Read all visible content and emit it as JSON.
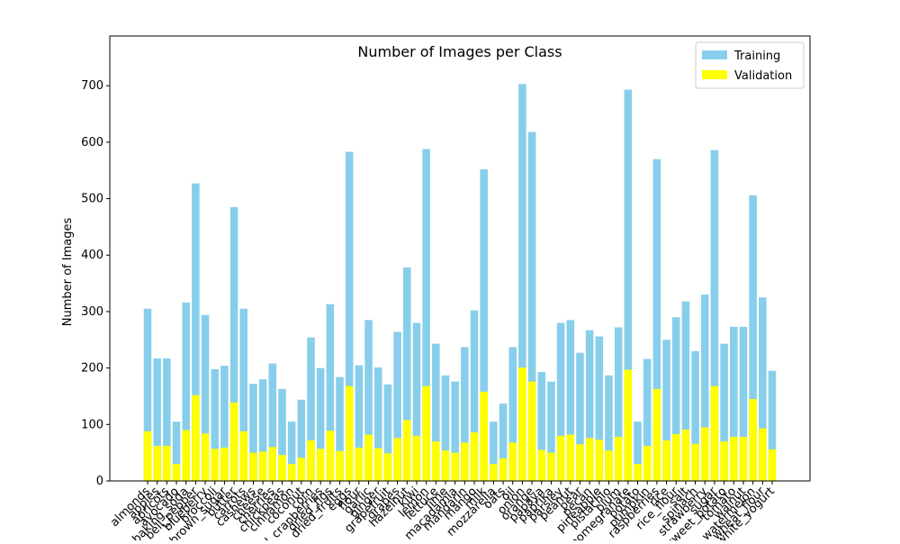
{
  "chart_data": {
    "type": "bar",
    "title": "Number of Images per Class",
    "ylabel": "Number of Images",
    "categories": [
      "almonds",
      "apples",
      "apricots",
      "avocado",
      "baking_soda",
      "bell_pepper",
      "blueberry",
      "broccoli",
      "brown_sugar",
      "butter",
      "carrots",
      "cashews",
      "cheese",
      "cherries",
      "chickpeas",
      "cinnamon",
      "coconut",
      "corn",
      "dried_cranberries",
      "dried_figs",
      "dried_fruits",
      "eggs",
      "flour",
      "garlic",
      "ginger",
      "grapefruit",
      "grapes",
      "hazelnut",
      "kiwi",
      "lemon",
      "lettuce",
      "lime",
      "macadamia",
      "mandarin",
      "mango",
      "milk",
      "mozzarella",
      "oats",
      "oil",
      "onion",
      "orange",
      "papaya",
      "paprika",
      "parsley",
      "peanut",
      "pear",
      "pecan",
      "pineapple",
      "pistachio",
      "plum",
      "pomegranate",
      "potato",
      "pumpkin",
      "raspberries",
      "rice",
      "rice_flour",
      "salt",
      "spinach",
      "strawberry",
      "sugar",
      "sweet_potato",
      "tomato",
      "walnut",
      "watermelon",
      "wheat_flour",
      "white_yogurt"
    ],
    "series": [
      {
        "name": "Training",
        "color": "#87ceeb",
        "values": [
          305,
          217,
          217,
          105,
          316,
          527,
          294,
          198,
          204,
          485,
          305,
          172,
          180,
          208,
          163,
          105,
          144,
          254,
          200,
          313,
          184,
          583,
          205,
          285,
          201,
          171,
          264,
          378,
          280,
          588,
          243,
          187,
          176,
          237,
          302,
          552,
          105,
          137,
          237,
          703,
          618,
          193,
          176,
          280,
          285,
          227,
          267,
          256,
          187,
          272,
          693,
          105,
          216,
          570,
          250,
          290,
          318,
          230,
          330,
          586,
          243,
          273,
          273,
          506,
          325,
          195
        ]
      },
      {
        "name": "Validation",
        "color": "#ffff00",
        "values": [
          88,
          62,
          62,
          30,
          90,
          152,
          84,
          57,
          59,
          139,
          88,
          50,
          52,
          60,
          46,
          30,
          41,
          72,
          57,
          89,
          53,
          168,
          59,
          82,
          58,
          49,
          76,
          108,
          80,
          168,
          70,
          54,
          50,
          68,
          86,
          158,
          30,
          40,
          68,
          201,
          176,
          55,
          50,
          80,
          82,
          65,
          76,
          73,
          54,
          78,
          197,
          30,
          62,
          163,
          72,
          83,
          91,
          66,
          95,
          168,
          70,
          78,
          78,
          145,
          93,
          56
        ]
      }
    ],
    "ylim": [
      0,
      788
    ],
    "yticks": [
      0,
      100,
      200,
      300,
      400,
      500,
      600,
      700
    ],
    "legend": "upper right"
  }
}
